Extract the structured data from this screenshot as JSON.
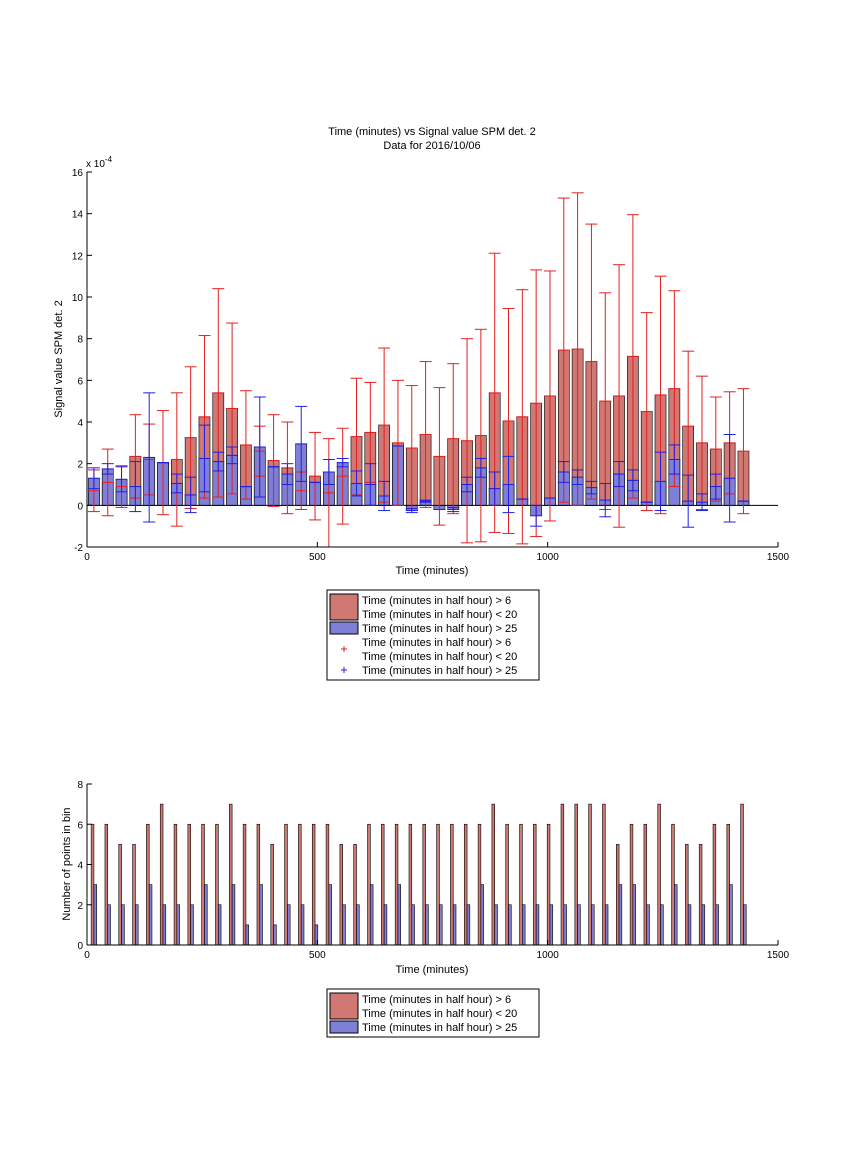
{
  "chart_data": [
    {
      "type": "bar",
      "title": "Time (minutes) vs Signal value SPM det. 2",
      "subtitle": "Data for 2016/10/06",
      "xlabel": "Time (minutes)",
      "ylabel": "Signal value SPM det. 2",
      "exponent_base": "x 10",
      "exponent_power": "-4",
      "xlim": [
        0,
        1500
      ],
      "ylim": [
        -2,
        16
      ],
      "xticks": [
        0,
        500,
        1000,
        1500
      ],
      "yticks": [
        -2,
        0,
        2,
        4,
        6,
        8,
        10,
        12,
        14,
        16
      ],
      "grid": false,
      "legend_position": "below",
      "colors": {
        "red": "#d07873",
        "blue": "#7f7fd8",
        "red_err": "#e02020",
        "blue_err": "#2020e0"
      },
      "legend": [
        {
          "label_lines": [
            "Time (minutes in half hour) > 6",
            "Time (minutes in half hour) < 20"
          ],
          "marker": "patch",
          "color": "#d07873"
        },
        {
          "label_lines": [
            "Time (minutes in half hour) > 25"
          ],
          "marker": "patch",
          "color": "#7f7fd8"
        },
        {
          "label_lines": [
            "Time (minutes in half hour) > 6",
            "Time (minutes in half hour) < 20"
          ],
          "marker": "plus",
          "color": "#e02020"
        },
        {
          "label_lines": [
            "Time (minutes in half hour) > 25"
          ],
          "marker": "plus",
          "color": "#2020e0"
        }
      ],
      "series": [
        {
          "x": [
            15,
            45,
            75,
            105,
            135,
            165,
            195,
            225,
            255,
            285,
            315,
            345,
            375,
            405,
            435,
            465,
            495,
            525,
            555,
            585,
            615,
            645,
            675,
            705,
            735,
            765,
            795,
            825,
            855,
            885,
            915,
            945,
            975,
            1005,
            1035,
            1065,
            1095,
            1125,
            1155,
            1185,
            1215,
            1245,
            1275,
            1305,
            1335,
            1365,
            1395,
            1425
          ],
          "values": [
            0.7,
            1.1,
            0.9,
            2.35,
            2.2,
            2.05,
            2.2,
            3.25,
            4.25,
            5.4,
            4.65,
            2.9,
            2.6,
            2.15,
            1.8,
            0.7,
            1.4,
            0.6,
            1.4,
            3.3,
            3.5,
            3.85,
            3.0,
            2.75,
            3.4,
            2.35,
            3.2,
            3.1,
            3.35,
            5.4,
            4.05,
            4.25,
            4.9,
            5.25,
            7.45,
            7.5,
            6.9,
            5.0,
            5.25,
            7.15,
            4.5,
            5.3,
            5.6,
            3.8,
            3.0,
            2.7,
            3.0,
            2.6
          ],
          "err": [
            1.0,
            1.6,
            1.0,
            2.0,
            1.7,
            2.5,
            3.2,
            3.4,
            3.9,
            5.0,
            4.1,
            2.6,
            1.2,
            2.2,
            2.2,
            0.9,
            2.1,
            2.6,
            2.3,
            2.8,
            2.4,
            3.7,
            3.0,
            3.0,
            3.5,
            3.3,
            3.6,
            4.9,
            5.1,
            6.7,
            5.4,
            6.1,
            6.4,
            6.0,
            7.3,
            7.5,
            6.6,
            5.2,
            6.3,
            6.8,
            4.75,
            5.7,
            4.7,
            3.6,
            3.2,
            2.5,
            2.45,
            3.0
          ]
        },
        {
          "x": [
            15,
            45,
            75,
            105,
            135,
            165,
            195,
            225,
            255,
            285,
            315,
            345,
            375,
            405,
            435,
            465,
            495,
            525,
            555,
            585,
            615,
            645,
            675,
            705,
            735,
            765,
            795,
            825,
            855,
            885,
            915,
            945,
            975,
            1005,
            1035,
            1065,
            1095,
            1125,
            1155,
            1185,
            1215,
            1245,
            1275,
            1305,
            1335,
            1365,
            1395,
            1425
          ],
          "values": [
            1.3,
            1.75,
            1.25,
            0.9,
            2.3,
            2.05,
            1.05,
            0.5,
            2.25,
            2.1,
            2.4,
            0.9,
            2.8,
            1.85,
            1.5,
            2.95,
            1.1,
            1.6,
            2.05,
            1.05,
            1.0,
            0.45,
            2.85,
            -0.25,
            0.2,
            -0.2,
            -0.2,
            1.0,
            1.8,
            0.8,
            1.0,
            0.3,
            -0.5,
            0.35,
            1.6,
            1.35,
            0.85,
            0.25,
            1.5,
            1.2,
            0.15,
            1.15,
            2.2,
            0.2,
            0.15,
            0.9,
            1.3,
            0.2
          ],
          "err": [
            0.5,
            0.25,
            0.6,
            1.2,
            3.1,
            0.0,
            0.45,
            0.85,
            1.6,
            0.45,
            0.4,
            0.0,
            2.4,
            0.0,
            0.5,
            1.8,
            0.0,
            0.6,
            0.2,
            0.6,
            1.0,
            0.7,
            0.0,
            0.1,
            0.05,
            0.0,
            0.1,
            0.35,
            0.45,
            0.8,
            1.35,
            0.0,
            0.5,
            0.0,
            0.5,
            0.35,
            0.3,
            0.8,
            0.6,
            0.5,
            0.0,
            1.4,
            0.7,
            1.25,
            0.4,
            0.6,
            2.1,
            0.0
          ]
        }
      ]
    },
    {
      "type": "bar",
      "xlabel": "Time (minutes)",
      "ylabel": "Number of points in bin",
      "xlim": [
        0,
        1500
      ],
      "ylim": [
        0,
        8
      ],
      "xticks": [
        0,
        500,
        1000,
        1500
      ],
      "yticks": [
        0,
        2,
        4,
        6,
        8
      ],
      "grid": false,
      "legend_position": "below",
      "colors": {
        "red": "#d07873",
        "blue": "#7f7fd8"
      },
      "legend": [
        {
          "label_lines": [
            "Time (minutes in half hour) > 6",
            "Time (minutes in half hour) < 20"
          ],
          "marker": "patch",
          "color": "#d07873"
        },
        {
          "label_lines": [
            "Time (minutes in half hour) > 25"
          ],
          "marker": "patch",
          "color": "#7f7fd8"
        }
      ],
      "series": [
        {
          "x": [
            15,
            45,
            75,
            105,
            135,
            165,
            195,
            225,
            255,
            285,
            315,
            345,
            375,
            405,
            435,
            465,
            495,
            525,
            555,
            585,
            615,
            645,
            675,
            705,
            735,
            765,
            795,
            825,
            855,
            885,
            915,
            945,
            975,
            1005,
            1035,
            1065,
            1095,
            1125,
            1155,
            1185,
            1215,
            1245,
            1275,
            1305,
            1335,
            1365,
            1395,
            1425
          ],
          "values": [
            6,
            6,
            5,
            5,
            6,
            7,
            6,
            6,
            6,
            6,
            7,
            6,
            6,
            5,
            6,
            6,
            6,
            6,
            5,
            5,
            6,
            6,
            6,
            6,
            6,
            6,
            6,
            6,
            6,
            7,
            6,
            6,
            6,
            6,
            7,
            7,
            7,
            7,
            5,
            6,
            6,
            7,
            6,
            5,
            5,
            6,
            6,
            7
          ]
        },
        {
          "x": [
            15,
            45,
            75,
            105,
            135,
            165,
            195,
            225,
            255,
            285,
            315,
            345,
            375,
            405,
            435,
            465,
            495,
            525,
            555,
            585,
            615,
            645,
            675,
            705,
            735,
            765,
            795,
            825,
            855,
            885,
            915,
            945,
            975,
            1005,
            1035,
            1065,
            1095,
            1125,
            1155,
            1185,
            1215,
            1245,
            1275,
            1305,
            1335,
            1365,
            1395,
            1425
          ],
          "values": [
            3,
            2,
            2,
            2,
            3,
            2,
            2,
            2,
            3,
            2,
            3,
            1,
            3,
            1,
            2,
            2,
            1,
            3,
            2,
            2,
            3,
            2,
            3,
            2,
            2,
            2,
            2,
            2,
            3,
            2,
            2,
            2,
            2,
            2,
            2,
            2,
            2,
            2,
            3,
            3,
            2,
            2,
            3,
            2,
            2,
            2,
            3,
            2
          ]
        }
      ]
    }
  ]
}
